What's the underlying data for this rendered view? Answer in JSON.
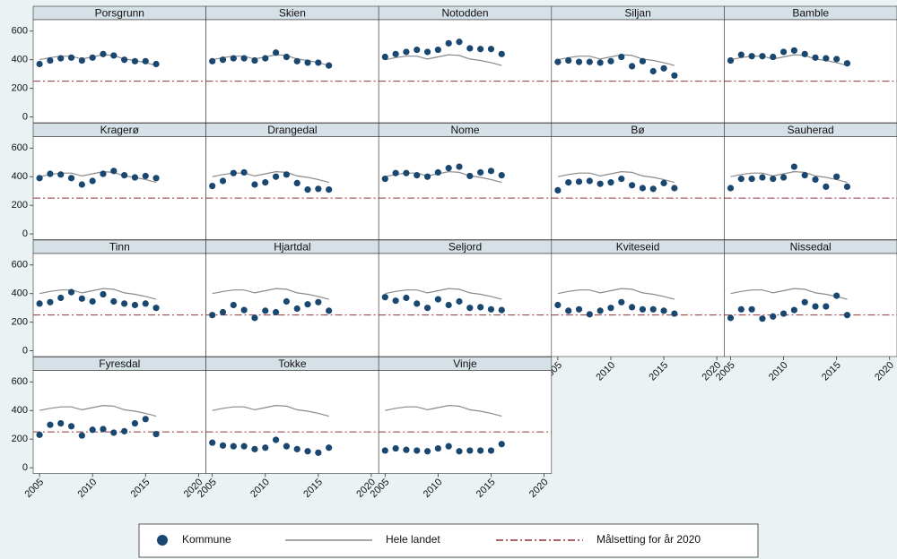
{
  "chart_data": {
    "type": "scatter",
    "x": [
      2005,
      2006,
      2007,
      2008,
      2009,
      2010,
      2011,
      2012,
      2013,
      2014,
      2015,
      2016
    ],
    "xlim": [
      2004.4,
      2020.7
    ],
    "xticks": [
      2005,
      2010,
      2015,
      2020
    ],
    "ylim": [
      -40,
      680
    ],
    "yticks": [
      0,
      200,
      400,
      600
    ],
    "kommune": {
      "name": "Kommune",
      "color": "#1a476f"
    },
    "hele_landet": {
      "name": "Hele landet",
      "color": "#8a8a8a",
      "values": [
        400,
        415,
        425,
        425,
        405,
        420,
        435,
        430,
        405,
        395,
        380,
        360
      ]
    },
    "target": {
      "name": "Målsetting for år 2020",
      "color": "#90353b",
      "value": 250
    },
    "panels": [
      {
        "title": "Porsgrunn",
        "values": [
          370,
          395,
          410,
          415,
          395,
          415,
          440,
          430,
          400,
          390,
          390,
          370
        ]
      },
      {
        "title": "Skien",
        "values": [
          390,
          400,
          410,
          410,
          395,
          410,
          450,
          420,
          390,
          380,
          380,
          360
        ]
      },
      {
        "title": "Notodden",
        "values": [
          420,
          440,
          455,
          470,
          455,
          470,
          515,
          525,
          480,
          475,
          475,
          440
        ]
      },
      {
        "title": "Siljan",
        "values": [
          385,
          395,
          385,
          385,
          380,
          390,
          420,
          355,
          390,
          320,
          340,
          290
        ]
      },
      {
        "title": "Bamble",
        "values": [
          395,
          435,
          425,
          425,
          420,
          455,
          465,
          440,
          415,
          410,
          405,
          375
        ]
      },
      {
        "title": "Kragerø",
        "values": [
          390,
          420,
          415,
          390,
          345,
          370,
          420,
          440,
          410,
          395,
          405,
          390
        ]
      },
      {
        "title": "Drangedal",
        "values": [
          335,
          370,
          425,
          430,
          345,
          360,
          400,
          415,
          355,
          310,
          315,
          310
        ]
      },
      {
        "title": "Nome",
        "values": [
          385,
          425,
          425,
          410,
          400,
          430,
          460,
          470,
          405,
          430,
          440,
          410
        ]
      },
      {
        "title": "Bø",
        "values": [
          305,
          360,
          365,
          370,
          350,
          360,
          385,
          340,
          320,
          315,
          355,
          320
        ]
      },
      {
        "title": "Sauherad",
        "values": [
          320,
          385,
          385,
          395,
          385,
          395,
          470,
          410,
          380,
          330,
          400,
          330
        ]
      },
      {
        "title": "Tinn",
        "values": [
          330,
          340,
          370,
          410,
          365,
          345,
          395,
          345,
          330,
          320,
          330,
          300
        ]
      },
      {
        "title": "Hjartdal",
        "values": [
          250,
          270,
          320,
          285,
          230,
          280,
          270,
          345,
          295,
          325,
          340,
          280
        ]
      },
      {
        "title": "Seljord",
        "values": [
          375,
          350,
          370,
          330,
          300,
          360,
          320,
          345,
          300,
          305,
          290,
          285
        ]
      },
      {
        "title": "Kviteseid",
        "values": [
          320,
          280,
          290,
          255,
          280,
          300,
          340,
          305,
          290,
          290,
          280,
          260
        ]
      },
      {
        "title": "Nissedal",
        "values": [
          230,
          290,
          290,
          225,
          240,
          260,
          285,
          340,
          310,
          310,
          385,
          250
        ]
      },
      {
        "title": "Fyresdal",
        "values": [
          230,
          300,
          310,
          290,
          225,
          265,
          270,
          245,
          255,
          310,
          340,
          235
        ]
      },
      {
        "title": "Tokke",
        "values": [
          175,
          155,
          150,
          150,
          130,
          140,
          195,
          150,
          130,
          115,
          105,
          140
        ]
      },
      {
        "title": "Vinje",
        "values": [
          120,
          135,
          125,
          120,
          115,
          135,
          150,
          115,
          120,
          120,
          120,
          165
        ]
      }
    ]
  }
}
